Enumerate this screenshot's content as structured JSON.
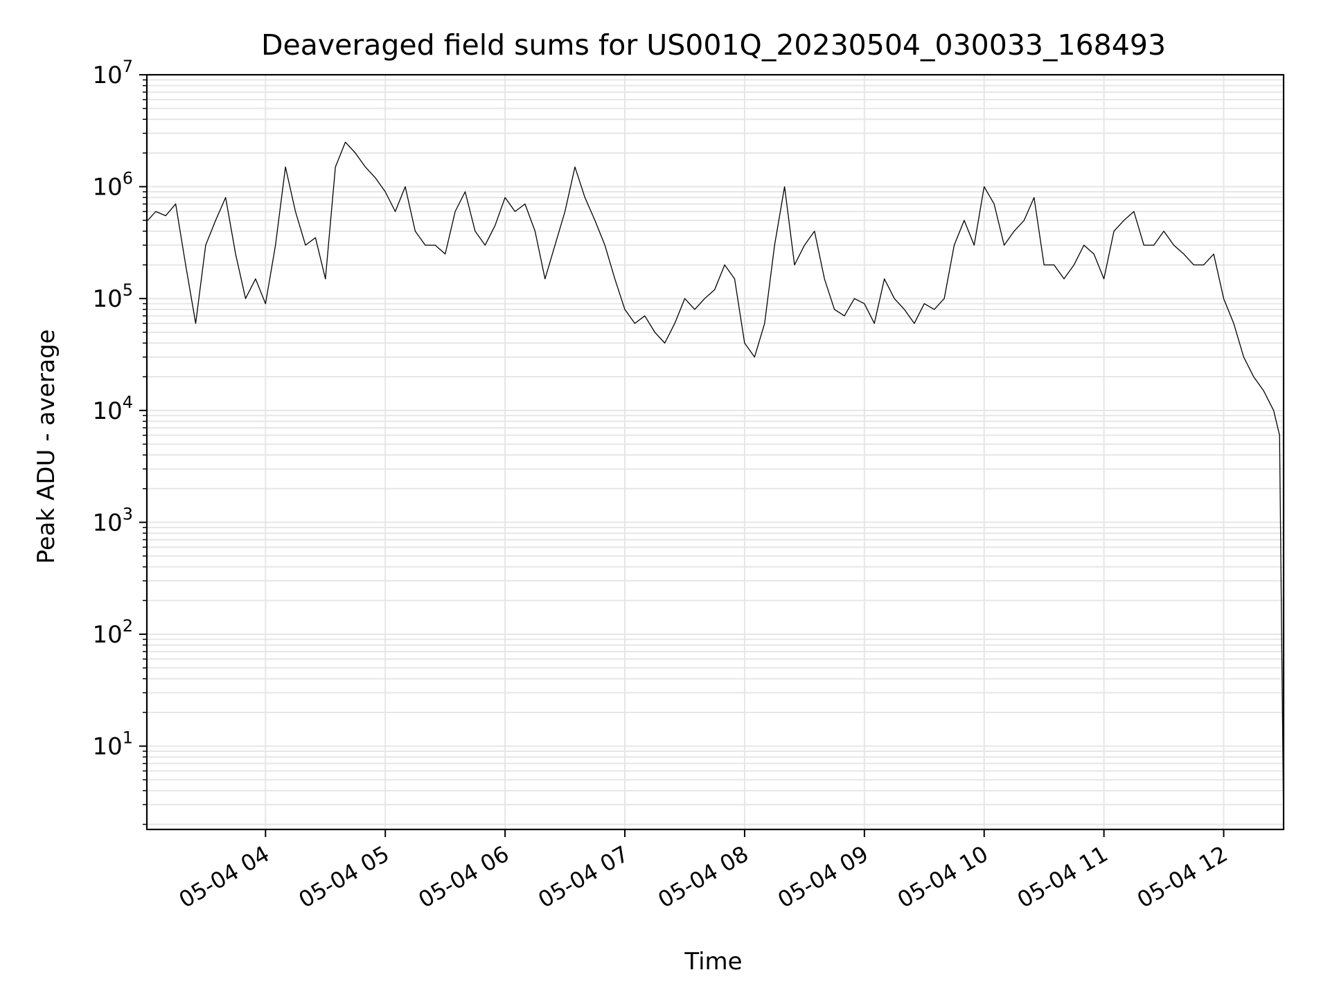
{
  "chart_data": {
    "type": "line",
    "title": "Deaveraged field sums for US001Q_20230504_030033_168493",
    "xlabel": "Time",
    "ylabel": "Peak ADU - average",
    "yscale": "log",
    "ylim": [
      1.8,
      10000000
    ],
    "xlim": [
      "2023-05-04 03:00:33",
      "2023-05-04 12:30:00"
    ],
    "grid": true,
    "line_color": "#000000",
    "grid_color": "#e6e6e6",
    "x_ticks": [
      {
        "time": "2023-05-04 04:00",
        "label": "05-04 04"
      },
      {
        "time": "2023-05-04 05:00",
        "label": "05-04 05"
      },
      {
        "time": "2023-05-04 06:00",
        "label": "05-04 06"
      },
      {
        "time": "2023-05-04 07:00",
        "label": "05-04 07"
      },
      {
        "time": "2023-05-04 08:00",
        "label": "05-04 08"
      },
      {
        "time": "2023-05-04 09:00",
        "label": "05-04 09"
      },
      {
        "time": "2023-05-04 10:00",
        "label": "05-04 10"
      },
      {
        "time": "2023-05-04 11:00",
        "label": "05-04 11"
      },
      {
        "time": "2023-05-04 12:00",
        "label": "05-04 12"
      }
    ],
    "y_ticks": [
      {
        "value": 10,
        "base": "10",
        "exp": "1"
      },
      {
        "value": 100,
        "base": "10",
        "exp": "2"
      },
      {
        "value": 1000,
        "base": "10",
        "exp": "3"
      },
      {
        "value": 10000,
        "base": "10",
        "exp": "4"
      },
      {
        "value": 100000,
        "base": "10",
        "exp": "5"
      },
      {
        "value": 1000000,
        "base": "10",
        "exp": "6"
      },
      {
        "value": 10000000,
        "base": "10",
        "exp": "7"
      }
    ],
    "series": [
      {
        "x": [
          "2023-05-04 03:01",
          "2023-05-04 03:05",
          "2023-05-04 03:10",
          "2023-05-04 03:15",
          "2023-05-04 03:20",
          "2023-05-04 03:25",
          "2023-05-04 03:30",
          "2023-05-04 03:35",
          "2023-05-04 03:40",
          "2023-05-04 03:45",
          "2023-05-04 03:50",
          "2023-05-04 03:55",
          "2023-05-04 04:00",
          "2023-05-04 04:05",
          "2023-05-04 04:10",
          "2023-05-04 04:15",
          "2023-05-04 04:20",
          "2023-05-04 04:25",
          "2023-05-04 04:30",
          "2023-05-04 04:35",
          "2023-05-04 04:40",
          "2023-05-04 04:45",
          "2023-05-04 04:50",
          "2023-05-04 04:55",
          "2023-05-04 05:00",
          "2023-05-04 05:05",
          "2023-05-04 05:10",
          "2023-05-04 05:15",
          "2023-05-04 05:20",
          "2023-05-04 05:25",
          "2023-05-04 05:30",
          "2023-05-04 05:35",
          "2023-05-04 05:40",
          "2023-05-04 05:45",
          "2023-05-04 05:50",
          "2023-05-04 05:55",
          "2023-05-04 06:00",
          "2023-05-04 06:05",
          "2023-05-04 06:10",
          "2023-05-04 06:15",
          "2023-05-04 06:20",
          "2023-05-04 06:25",
          "2023-05-04 06:30",
          "2023-05-04 06:35",
          "2023-05-04 06:40",
          "2023-05-04 06:45",
          "2023-05-04 06:50",
          "2023-05-04 06:55",
          "2023-05-04 07:00",
          "2023-05-04 07:05",
          "2023-05-04 07:10",
          "2023-05-04 07:15",
          "2023-05-04 07:20",
          "2023-05-04 07:25",
          "2023-05-04 07:30",
          "2023-05-04 07:35",
          "2023-05-04 07:40",
          "2023-05-04 07:45",
          "2023-05-04 07:50",
          "2023-05-04 07:55",
          "2023-05-04 08:00",
          "2023-05-04 08:05",
          "2023-05-04 08:10",
          "2023-05-04 08:15",
          "2023-05-04 08:20",
          "2023-05-04 08:25",
          "2023-05-04 08:30",
          "2023-05-04 08:35",
          "2023-05-04 08:40",
          "2023-05-04 08:45",
          "2023-05-04 08:50",
          "2023-05-04 08:55",
          "2023-05-04 09:00",
          "2023-05-04 09:05",
          "2023-05-04 09:10",
          "2023-05-04 09:15",
          "2023-05-04 09:20",
          "2023-05-04 09:25",
          "2023-05-04 09:30",
          "2023-05-04 09:35",
          "2023-05-04 09:40",
          "2023-05-04 09:45",
          "2023-05-04 09:50",
          "2023-05-04 09:55",
          "2023-05-04 10:00",
          "2023-05-04 10:05",
          "2023-05-04 10:10",
          "2023-05-04 10:15",
          "2023-05-04 10:20",
          "2023-05-04 10:25",
          "2023-05-04 10:30",
          "2023-05-04 10:35",
          "2023-05-04 10:40",
          "2023-05-04 10:45",
          "2023-05-04 10:50",
          "2023-05-04 10:55",
          "2023-05-04 11:00",
          "2023-05-04 11:05",
          "2023-05-04 11:10",
          "2023-05-04 11:15",
          "2023-05-04 11:20",
          "2023-05-04 11:25",
          "2023-05-04 11:30",
          "2023-05-04 11:35",
          "2023-05-04 11:40",
          "2023-05-04 11:45",
          "2023-05-04 11:50",
          "2023-05-04 11:55",
          "2023-05-04 12:00",
          "2023-05-04 12:05",
          "2023-05-04 12:10",
          "2023-05-04 12:15",
          "2023-05-04 12:20",
          "2023-05-04 12:25",
          "2023-05-04 12:28",
          "2023-05-04 12:30"
        ],
        "y": [
          500000,
          600000,
          550000,
          700000,
          200000,
          60000,
          300000,
          500000,
          800000,
          250000,
          100000,
          150000,
          90000,
          300000,
          1500000,
          600000,
          300000,
          350000,
          150000,
          1500000,
          2500000,
          2000000,
          1500000,
          1200000,
          900000,
          600000,
          1000000,
          400000,
          300000,
          300000,
          250000,
          600000,
          900000,
          400000,
          300000,
          450000,
          800000,
          600000,
          700000,
          400000,
          150000,
          300000,
          600000,
          1500000,
          800000,
          500000,
          300000,
          150000,
          80000,
          60000,
          70000,
          50000,
          40000,
          60000,
          100000,
          80000,
          100000,
          120000,
          200000,
          150000,
          40000,
          30000,
          60000,
          300000,
          1000000,
          200000,
          300000,
          400000,
          150000,
          80000,
          70000,
          100000,
          90000,
          60000,
          150000,
          100000,
          80000,
          60000,
          90000,
          80000,
          100000,
          300000,
          500000,
          300000,
          1000000,
          700000,
          300000,
          400000,
          500000,
          800000,
          200000,
          200000,
          150000,
          200000,
          300000,
          250000,
          150000,
          400000,
          500000,
          600000,
          300000,
          300000,
          400000,
          300000,
          250000,
          200000,
          200000,
          250000,
          100000,
          60000,
          30000,
          20000,
          15000,
          10000,
          6000,
          2
        ]
      }
    ]
  }
}
